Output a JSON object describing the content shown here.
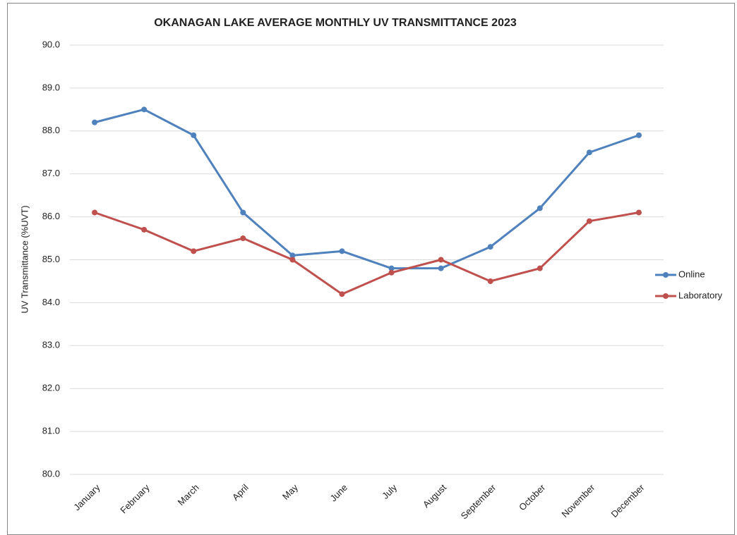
{
  "chart_data": {
    "type": "line",
    "title": "OKANAGAN LAKE AVERAGE MONTHLY UV TRANSMITTANCE 2023",
    "y_label": "UV Transmittance (%UVT)",
    "categories": [
      "January",
      "February",
      "March",
      "April",
      "May",
      "June",
      "July",
      "August",
      "September",
      "October",
      "November",
      "December"
    ],
    "series": [
      {
        "name": "Online",
        "color": "#4f81bd",
        "values": [
          88.2,
          88.5,
          87.9,
          86.1,
          85.1,
          85.2,
          84.8,
          84.8,
          85.3,
          86.2,
          87.5,
          87.9
        ]
      },
      {
        "name": "Laboratory",
        "color": "#c0504d",
        "values": [
          86.1,
          85.7,
          85.2,
          85.5,
          85.0,
          84.2,
          84.7,
          85.0,
          84.5,
          84.8,
          85.9,
          86.1
        ]
      }
    ],
    "ylim": [
      80,
      90
    ],
    "yticks": [
      {
        "value": 80,
        "label": "80.0"
      },
      {
        "value": 81,
        "label": "81.0"
      },
      {
        "value": 82,
        "label": "82.0"
      },
      {
        "value": 83,
        "label": "83.0"
      },
      {
        "value": 84,
        "label": "84.0"
      },
      {
        "value": 85,
        "label": "85.0"
      },
      {
        "value": 86,
        "label": "86.0"
      },
      {
        "value": 87,
        "label": "87.0"
      },
      {
        "value": 88,
        "label": "88.0"
      },
      {
        "value": 89,
        "label": "89.0"
      },
      {
        "value": 90,
        "label": "90.0"
      }
    ],
    "grid": true,
    "legend": "right"
  }
}
